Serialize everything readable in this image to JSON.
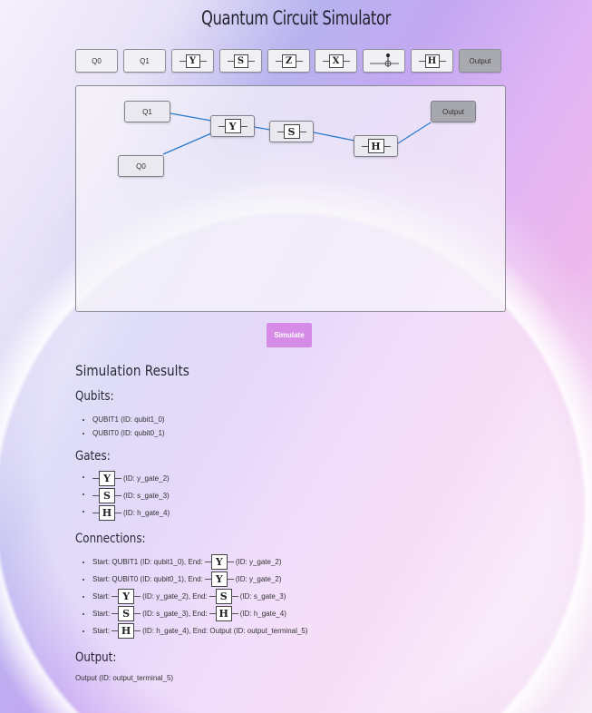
{
  "app": {
    "title": "Quantum Circuit Simulator"
  },
  "palette": [
    {
      "label": "Q0",
      "kind": "text"
    },
    {
      "label": "Q1",
      "kind": "text"
    },
    {
      "label": "Y",
      "kind": "gate"
    },
    {
      "label": "S",
      "kind": "gate"
    },
    {
      "label": "Z",
      "kind": "gate"
    },
    {
      "label": "X",
      "kind": "gate"
    },
    {
      "label": "",
      "kind": "cnot"
    },
    {
      "label": "H",
      "kind": "gate"
    },
    {
      "label": "Output",
      "kind": "text"
    }
  ],
  "canvas": {
    "nodes": {
      "q1": "Q1",
      "q0": "Q0",
      "y": "Y",
      "s": "S",
      "h": "H",
      "output": "Output"
    }
  },
  "simulate_label": "Simulate",
  "results": {
    "heading": "Simulation Results",
    "qubits_heading": "Qubits:",
    "qubits": [
      "QUBIT1 (ID: qubit1_0)",
      "QUBIT0 (ID: qubit0_1)"
    ],
    "gates_heading": "Gates:",
    "gates": [
      {
        "symbol": "Y",
        "id": "(ID: y_gate_2)"
      },
      {
        "symbol": "S",
        "id": "(ID: s_gate_3)"
      },
      {
        "symbol": "H",
        "id": "(ID: h_gate_4)"
      }
    ],
    "connections_heading": "Connections:",
    "connections": [
      {
        "pre": "Start: QUBIT1 (ID: qubit1_0), End:",
        "g1": "",
        "mid": "",
        "g2": "Y",
        "post": "(ID: y_gate_2)"
      },
      {
        "pre": "Start: QUBIT0 (ID: qubit0_1), End:",
        "g1": "",
        "mid": "",
        "g2": "Y",
        "post": "(ID: y_gate_2)"
      },
      {
        "pre": "Start:",
        "g1": "Y",
        "mid": "(ID: y_gate_2), End:",
        "g2": "S",
        "post": "(ID: s_gate_3)"
      },
      {
        "pre": "Start:",
        "g1": "S",
        "mid": "(ID: s_gate_3), End:",
        "g2": "H",
        "post": "(ID: h_gate_4)"
      },
      {
        "pre": "Start:",
        "g1": "H",
        "mid": "(ID: h_gate_4), End: Output (ID: output_terminal_5)",
        "g2": "",
        "post": ""
      }
    ],
    "output_heading": "Output:",
    "output": "Output (ID: output_terminal_5)"
  }
}
